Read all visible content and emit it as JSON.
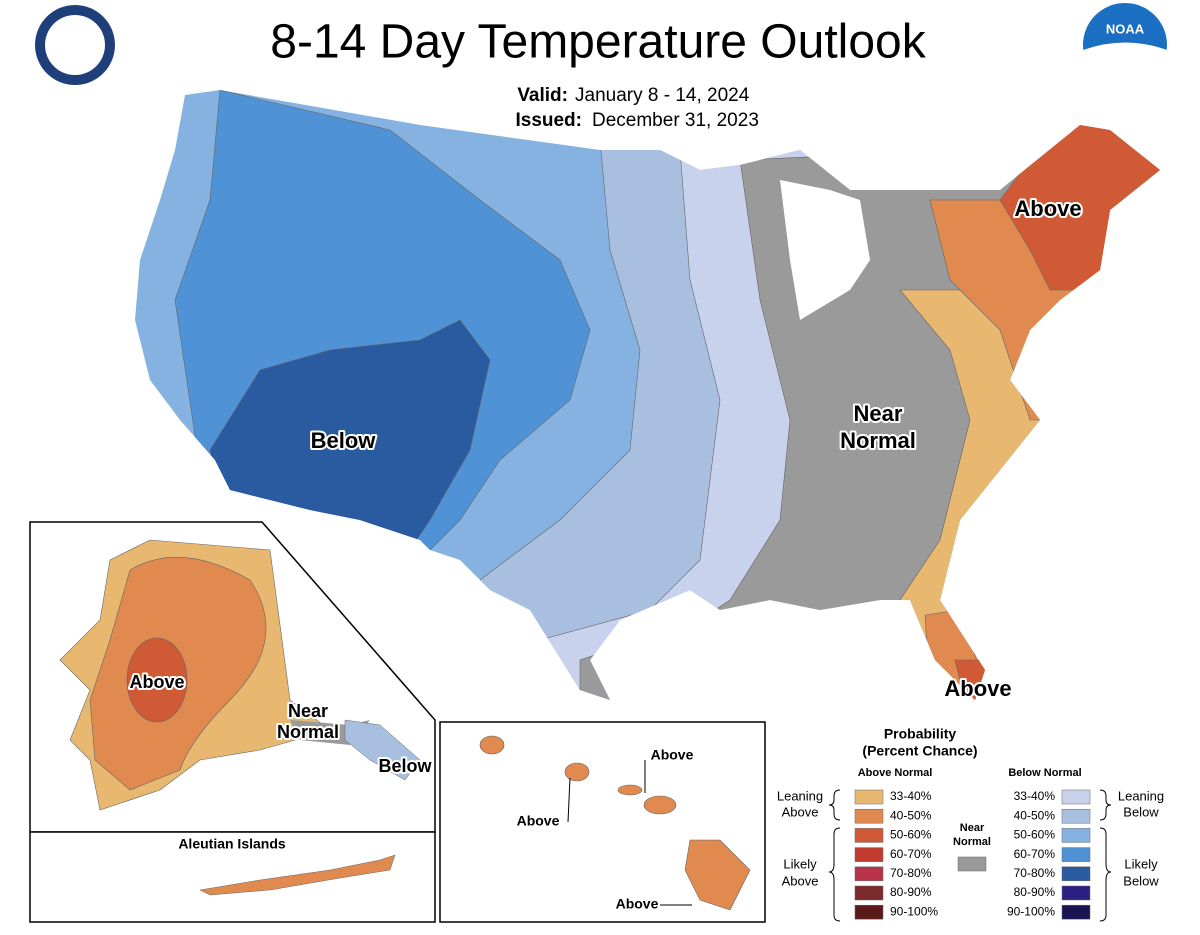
{
  "header": {
    "title": "8-14 Day Temperature Outlook",
    "valid_label": "Valid:",
    "valid_date": "January 8 - 14, 2024",
    "issued_label": "Issued:",
    "issued_date": "December 31, 2023"
  },
  "logo_text": "NOAA",
  "conus_labels": [
    "Above",
    "Below",
    "Near",
    "Normal",
    "Above"
  ],
  "alaska_labels": [
    "Above",
    "Near",
    "Normal",
    "Below"
  ],
  "aleutian_title": "Aleutian Islands",
  "hawaii_labels": [
    "Above",
    "Above",
    "Above"
  ],
  "legend": {
    "title": "Probability",
    "subtitle": "(Percent Chance)",
    "above_header": "Above Normal",
    "below_header": "Below Normal",
    "near_label": [
      "Near",
      "Normal"
    ],
    "near_color": "#9a9a9a",
    "above_bins": [
      {
        "label": "33-40%",
        "color": "#e8b870"
      },
      {
        "label": "40-50%",
        "color": "#e08a50"
      },
      {
        "label": "50-60%",
        "color": "#d05a36"
      },
      {
        "label": "60-70%",
        "color": "#c23b30"
      },
      {
        "label": "70-80%",
        "color": "#b83347"
      },
      {
        "label": "80-90%",
        "color": "#7a2a2a"
      },
      {
        "label": "90-100%",
        "color": "#5a1a1a"
      }
    ],
    "below_bins": [
      {
        "label": "33-40%",
        "color": "#c8d2ec"
      },
      {
        "label": "40-50%",
        "color": "#a9bfe0"
      },
      {
        "label": "50-60%",
        "color": "#85b2e0"
      },
      {
        "label": "60-70%",
        "color": "#4f93d6"
      },
      {
        "label": "70-80%",
        "color": "#2a5aa0"
      },
      {
        "label": "80-90%",
        "color": "#2a2080"
      },
      {
        "label": "90-100%",
        "color": "#1a1550"
      }
    ],
    "leaning_above": [
      "Leaning",
      "Above"
    ],
    "likely_above": [
      "Likely",
      "Above"
    ],
    "leaning_below": [
      "Leaning",
      "Below"
    ],
    "likely_below": [
      "Likely",
      "Below"
    ]
  }
}
